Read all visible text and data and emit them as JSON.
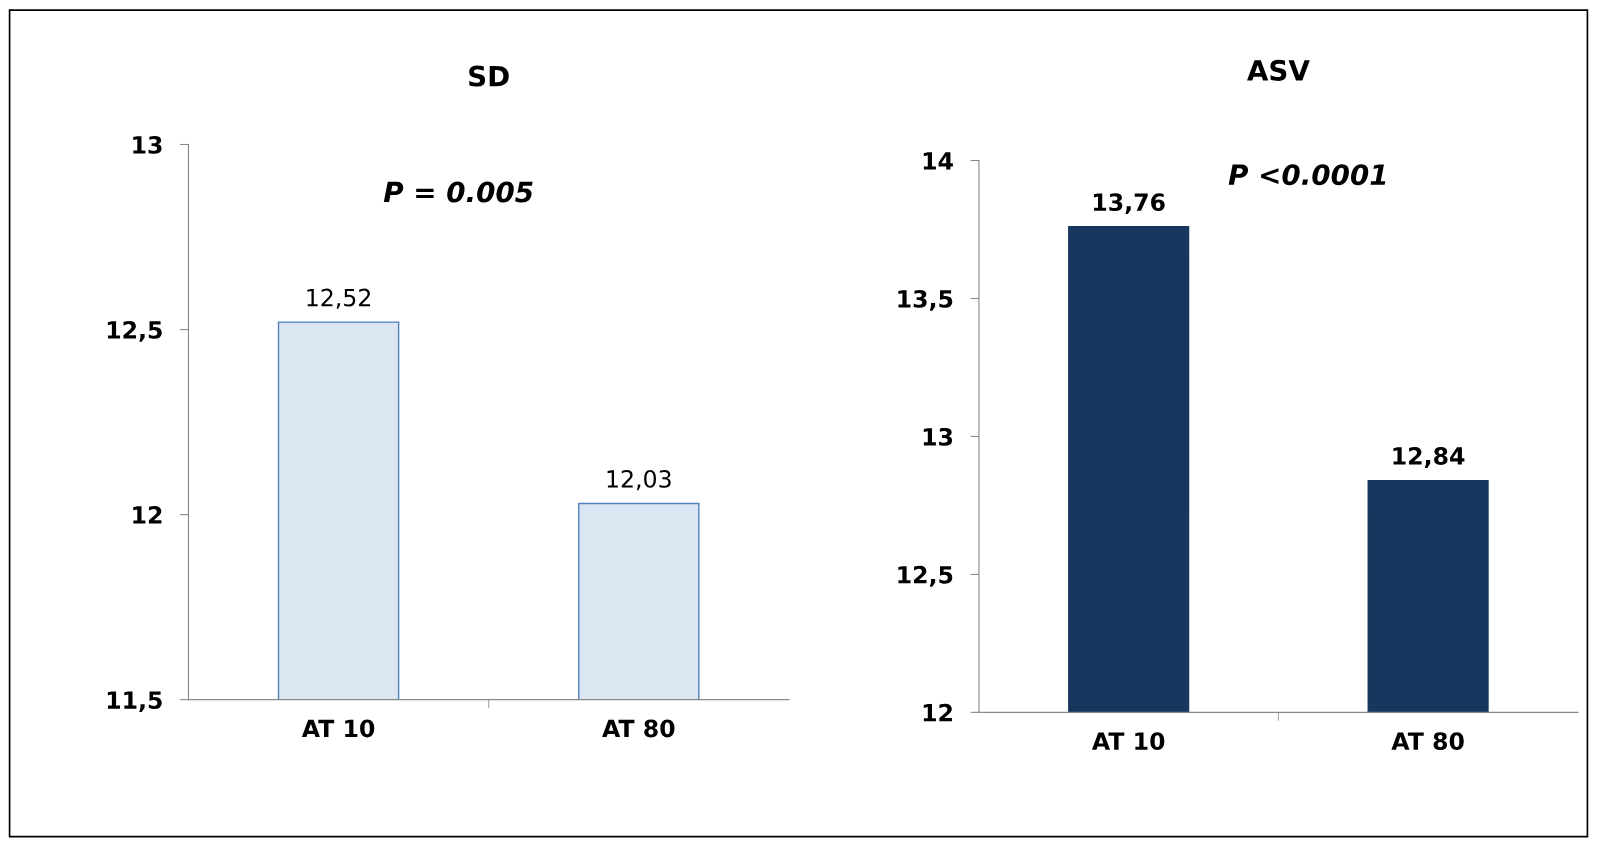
{
  "chart_data": [
    {
      "type": "bar",
      "title": "SD",
      "categories": [
        "AT 10",
        "AT 80"
      ],
      "values": [
        12.52,
        12.03
      ],
      "value_labels": [
        "12,52",
        "12,03"
      ],
      "color": "#dce6f2",
      "ylim": [
        11.5,
        13
      ],
      "yticks": [
        {
          "value": 11.5,
          "label": "11,5"
        },
        {
          "value": 12,
          "label": "12"
        },
        {
          "value": 12.5,
          "label": "12,5"
        },
        {
          "value": 13,
          "label": "13"
        }
      ],
      "grid": false,
      "legend": false,
      "annotations": [
        "P = 0.005"
      ]
    },
    {
      "type": "bar",
      "title": "ASV",
      "categories": [
        "AT 10",
        "AT 80"
      ],
      "values": [
        13.76,
        12.84
      ],
      "value_labels": [
        "13,76",
        "12,84"
      ],
      "color": "#17375e",
      "ylim": [
        12,
        14
      ],
      "yticks": [
        {
          "value": 12,
          "label": "12"
        },
        {
          "value": 12.5,
          "label": "12,5"
        },
        {
          "value": 13,
          "label": "13"
        },
        {
          "value": 13.5,
          "label": "13,5"
        },
        {
          "value": 14,
          "label": "14"
        }
      ],
      "grid": false,
      "legend": false,
      "annotations": [
        "P <0.0001"
      ]
    }
  ]
}
